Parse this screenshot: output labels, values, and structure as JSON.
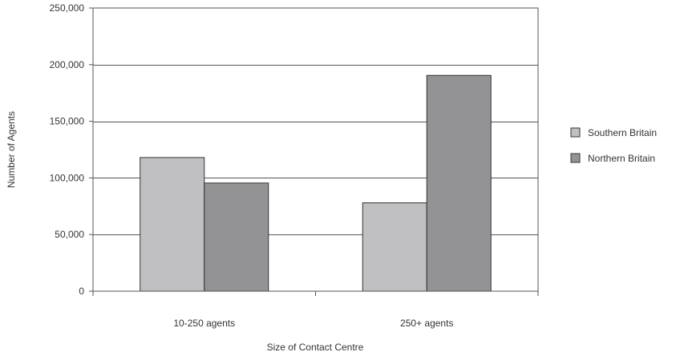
{
  "chart_data": {
    "type": "bar",
    "title": "",
    "xlabel": "Size of Contact Centre",
    "ylabel": "Number of Agents",
    "categories": [
      "10-250 agents",
      "250+ agents"
    ],
    "series": [
      {
        "name": "Southern Britain",
        "values": [
          118000,
          78000
        ],
        "color": "#c0c0c3"
      },
      {
        "name": "Northern Britain",
        "values": [
          95500,
          190500
        ],
        "color": "#939396"
      }
    ],
    "ylim": [
      0,
      250000
    ],
    "yticks": [
      0,
      50000,
      100000,
      150000,
      200000,
      250000
    ],
    "ytick_labels": [
      "0",
      "50,000",
      "100,000",
      "150,000",
      "200,000",
      "250,000"
    ],
    "grid": true,
    "legend_position": "right"
  }
}
